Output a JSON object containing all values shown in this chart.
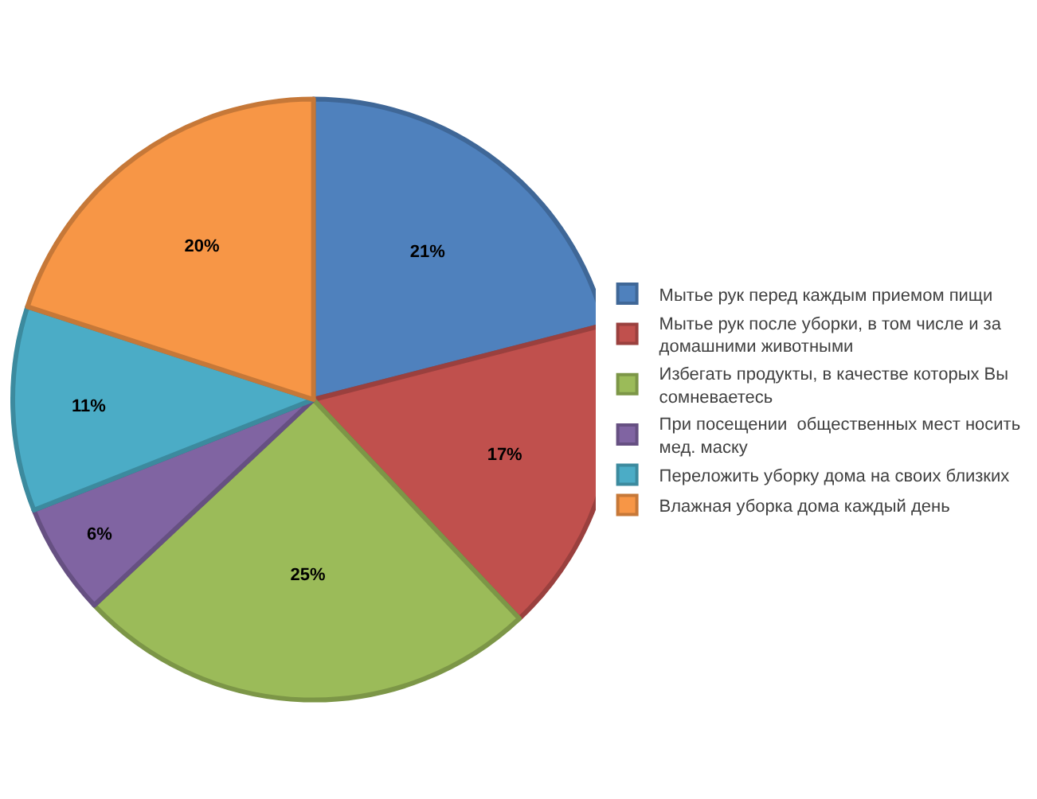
{
  "chart_data": {
    "type": "pie",
    "categories": [
      "Мытье рук перед каждым приемом пищи",
      "Мытье рук после уборки, в том числе и за домашними животными",
      "Избегать продукты, в качестве которых Вы сомневаетесь",
      "При посещении  общественных мест носить мед. маску",
      "Переложить уборку дома на своих близких",
      "Влажная уборка дома каждый день"
    ],
    "values": [
      21,
      17,
      25,
      6,
      11,
      20
    ],
    "value_labels": [
      "21%",
      "17%",
      "25%",
      "6%",
      "11%",
      "20%"
    ],
    "colors": [
      "#4f81bd",
      "#c0504d",
      "#9bbb59",
      "#8064a2",
      "#4bacc6",
      "#f79646"
    ],
    "legend": "right"
  }
}
